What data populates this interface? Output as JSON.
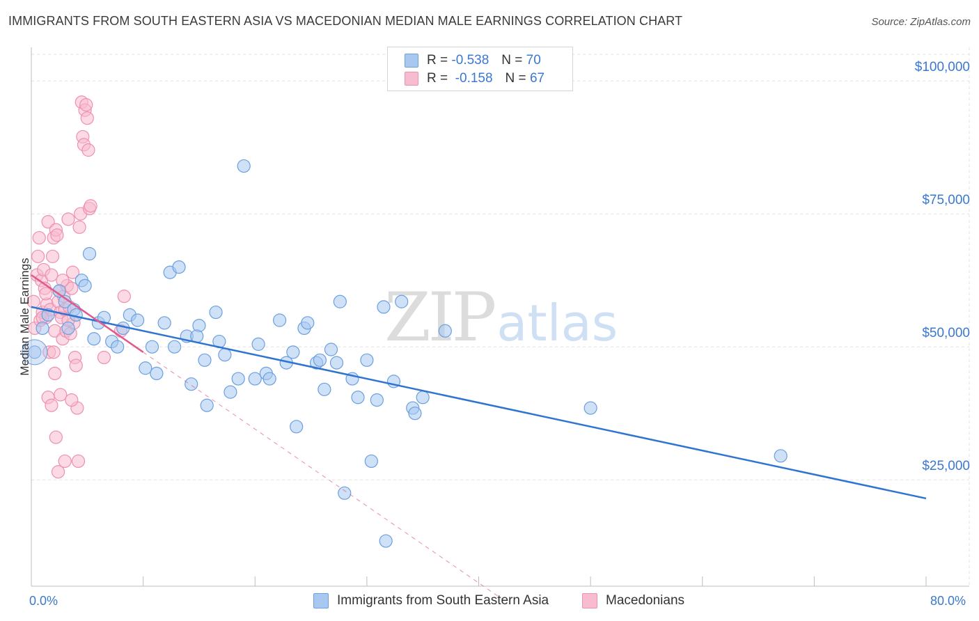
{
  "title": "IMMIGRANTS FROM SOUTH EASTERN ASIA VS MACEDONIAN MEDIAN MALE EARNINGS CORRELATION CHART",
  "source": "Source: ZipAtlas.com",
  "watermark": {
    "zip": "ZIP",
    "atlas": "atlas"
  },
  "legend": {
    "rows": [
      {
        "r_label": "R =",
        "r_value": "-0.538",
        "n_label": "N =",
        "n_value": "70"
      },
      {
        "r_label": "R =",
        "r_value": "-0.158",
        "n_label": "N =",
        "n_value": "67"
      }
    ]
  },
  "colors": {
    "blue_fill": "#a8c8f0",
    "blue_stroke": "#6a9fe0",
    "blue_line": "#2f74d0",
    "pink_fill": "#f7bcd0",
    "pink_stroke": "#ee8fb0",
    "pink_line": "#e05a8a",
    "grid": "#e2e2e2",
    "axis_text": "#3a78d0"
  },
  "chart_data": {
    "type": "scatter",
    "title": "IMMIGRANTS FROM SOUTH EASTERN ASIA VS MACEDONIAN MEDIAN MALE EARNINGS CORRELATION CHART",
    "xlabel": "",
    "ylabel": "Median Male Earnings",
    "xlim": [
      0,
      80
    ],
    "ylim": [
      5000,
      105000
    ],
    "x_tick_labels": {
      "min": "0.0%",
      "max": "80.0%"
    },
    "y_ticks": [
      {
        "value": 25000,
        "label": "$25,000"
      },
      {
        "value": 50000,
        "label": "$50,000"
      },
      {
        "value": 75000,
        "label": "$75,000"
      },
      {
        "value": 100000,
        "label": "$100,000"
      }
    ],
    "series": [
      {
        "name": "Immigrants from South Eastern Asia",
        "color": "#a8c8f0",
        "trend": {
          "x": [
            0,
            80
          ],
          "y": [
            57500,
            21500
          ]
        },
        "points": [
          [
            0.3,
            49000
          ],
          [
            1.0,
            53500
          ],
          [
            1.5,
            56000
          ],
          [
            2.5,
            60500
          ],
          [
            3.0,
            58500
          ],
          [
            3.3,
            53500
          ],
          [
            3.8,
            57000
          ],
          [
            4.5,
            62500
          ],
          [
            4.8,
            61500
          ],
          [
            5.2,
            67500
          ],
          [
            5.6,
            51500
          ],
          [
            6.0,
            54500
          ],
          [
            6.5,
            55500
          ],
          [
            7.2,
            51000
          ],
          [
            7.7,
            50000
          ],
          [
            8.2,
            53500
          ],
          [
            8.8,
            56000
          ],
          [
            9.5,
            55000
          ],
          [
            10.2,
            46000
          ],
          [
            10.8,
            50000
          ],
          [
            11.2,
            45000
          ],
          [
            11.9,
            54500
          ],
          [
            12.4,
            64000
          ],
          [
            12.8,
            50000
          ],
          [
            13.2,
            65000
          ],
          [
            13.9,
            52000
          ],
          [
            14.3,
            43000
          ],
          [
            15.0,
            54000
          ],
          [
            15.5,
            47500
          ],
          [
            15.7,
            39000
          ],
          [
            16.5,
            56500
          ],
          [
            16.8,
            51000
          ],
          [
            17.3,
            48500
          ],
          [
            17.8,
            41500
          ],
          [
            18.5,
            44000
          ],
          [
            19.0,
            84000
          ],
          [
            20.0,
            44000
          ],
          [
            20.3,
            50500
          ],
          [
            21.0,
            45000
          ],
          [
            21.3,
            44000
          ],
          [
            22.2,
            55000
          ],
          [
            22.8,
            47000
          ],
          [
            23.4,
            49000
          ],
          [
            23.7,
            35000
          ],
          [
            24.4,
            53500
          ],
          [
            24.7,
            54500
          ],
          [
            25.5,
            47000
          ],
          [
            25.8,
            47500
          ],
          [
            26.2,
            42000
          ],
          [
            26.8,
            49500
          ],
          [
            27.3,
            47000
          ],
          [
            27.6,
            58500
          ],
          [
            28.0,
            22500
          ],
          [
            28.7,
            44000
          ],
          [
            29.2,
            40500
          ],
          [
            30.0,
            47500
          ],
          [
            30.4,
            28500
          ],
          [
            30.9,
            40000
          ],
          [
            31.5,
            57500
          ],
          [
            31.7,
            13500
          ],
          [
            32.4,
            43500
          ],
          [
            33.1,
            58500
          ],
          [
            34.1,
            38500
          ],
          [
            34.3,
            37500
          ],
          [
            35.0,
            40500
          ],
          [
            37.0,
            53000
          ],
          [
            50.0,
            38500
          ],
          [
            67.0,
            29500
          ],
          [
            4.0,
            56000
          ],
          [
            14.8,
            52000
          ]
        ]
      },
      {
        "name": "Macedonians",
        "color": "#f7bcd0",
        "trend": {
          "x": [
            0,
            10
          ],
          "y": [
            63500,
            49000
          ]
        },
        "trend_ext": {
          "x": [
            10,
            42.5
          ],
          "y": [
            49000,
            2000
          ]
        },
        "points": [
          [
            0.2,
            58500
          ],
          [
            0.3,
            53500
          ],
          [
            0.5,
            63500
          ],
          [
            0.6,
            67000
          ],
          [
            0.7,
            70500
          ],
          [
            0.8,
            55000
          ],
          [
            0.9,
            62500
          ],
          [
            1.0,
            56500
          ],
          [
            1.1,
            64500
          ],
          [
            1.2,
            61000
          ],
          [
            1.3,
            55500
          ],
          [
            1.4,
            58000
          ],
          [
            1.5,
            73500
          ],
          [
            1.6,
            49000
          ],
          [
            1.7,
            57000
          ],
          [
            1.8,
            63500
          ],
          [
            1.9,
            67000
          ],
          [
            2.0,
            70500
          ],
          [
            2.1,
            53000
          ],
          [
            2.2,
            72000
          ],
          [
            2.3,
            71000
          ],
          [
            2.4,
            58500
          ],
          [
            2.5,
            60500
          ],
          [
            2.6,
            56500
          ],
          [
            2.7,
            55500
          ],
          [
            2.8,
            51500
          ],
          [
            2.9,
            59500
          ],
          [
            3.0,
            57000
          ],
          [
            3.1,
            53000
          ],
          [
            3.2,
            61500
          ],
          [
            3.3,
            74000
          ],
          [
            3.4,
            57500
          ],
          [
            3.5,
            52500
          ],
          [
            3.6,
            61000
          ],
          [
            3.7,
            64000
          ],
          [
            3.8,
            54500
          ],
          [
            3.9,
            48000
          ],
          [
            4.0,
            46500
          ],
          [
            4.1,
            38500
          ],
          [
            4.2,
            28500
          ],
          [
            4.3,
            72500
          ],
          [
            4.4,
            75000
          ],
          [
            4.5,
            96000
          ],
          [
            4.6,
            89500
          ],
          [
            4.7,
            88000
          ],
          [
            4.8,
            94500
          ],
          [
            4.9,
            95500
          ],
          [
            5.0,
            93000
          ],
          [
            5.1,
            87000
          ],
          [
            5.2,
            76000
          ],
          [
            5.3,
            76500
          ],
          [
            1.5,
            40500
          ],
          [
            1.8,
            39000
          ],
          [
            2.2,
            33000
          ],
          [
            2.4,
            26500
          ],
          [
            2.6,
            41000
          ],
          [
            3.0,
            28500
          ],
          [
            3.6,
            40000
          ],
          [
            2.0,
            49000
          ],
          [
            1.0,
            55500
          ],
          [
            1.3,
            60000
          ],
          [
            2.8,
            62500
          ],
          [
            3.3,
            55000
          ],
          [
            8.0,
            53000
          ],
          [
            8.3,
            59500
          ],
          [
            2.1,
            45000
          ],
          [
            6.5,
            48000
          ]
        ]
      }
    ]
  },
  "bottom_legend": [
    {
      "label": "Immigrants from South Eastern Asia"
    },
    {
      "label": "Macedonians"
    }
  ]
}
